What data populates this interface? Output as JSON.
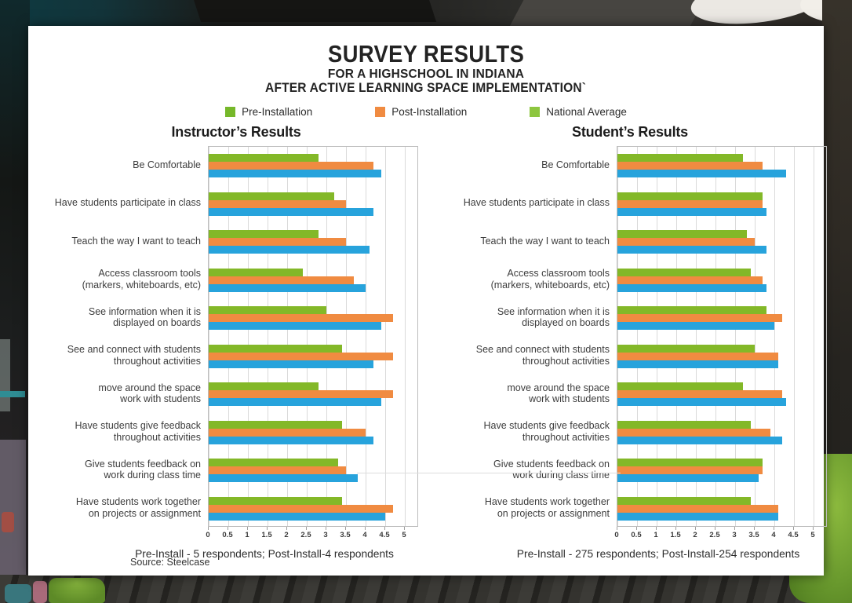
{
  "header": {
    "title": "SURVEY RESULTS",
    "subtitle1": "FOR A HIGHSCHOOL IN INDIANA",
    "subtitle2": "AFTER ACTIVE LEARNING SPACE IMPLEMENTATION`"
  },
  "legend": [
    {
      "label": "Pre-Installation",
      "color": "#76b82a"
    },
    {
      "label": "Post-Installation",
      "color": "#f08b41"
    },
    {
      "label": "National Average",
      "color": "#8dc63f"
    }
  ],
  "source": "Source: Steelcase",
  "chart_data": [
    {
      "type": "bar",
      "orientation": "horizontal",
      "title": "Instructor’s Results",
      "caption": "Pre-Install - 5 respondents; Post-Install-4 respondents",
      "xlim": [
        0,
        5
      ],
      "xticks": [
        "0",
        "0.5",
        "1",
        "1.5",
        "2",
        "2.5",
        "3",
        "3.5",
        "4",
        "4.5",
        "5"
      ],
      "grid": true,
      "categories": [
        [
          "Be Comfortable"
        ],
        [
          "Have students participate in class"
        ],
        [
          "Teach the way I want to teach"
        ],
        [
          "Access classroom tools",
          "(markers, whiteboards, etc)"
        ],
        [
          "See information when it is",
          "displayed on boards"
        ],
        [
          "See and connect with students",
          "throughout activities"
        ],
        [
          "move around the space",
          "work with students"
        ],
        [
          "Have students give feedback",
          "throughout activities"
        ],
        [
          "Give students feedback on",
          "work during class time"
        ],
        [
          "Have students work together",
          "on projects or assignment"
        ]
      ],
      "series": [
        {
          "name": "Pre-Installation",
          "color": "#83b828",
          "values": [
            2.8,
            3.2,
            2.8,
            2.4,
            3.0,
            3.4,
            2.8,
            3.4,
            3.3,
            3.4
          ]
        },
        {
          "name": "Post-Installation",
          "color": "#f08b41",
          "values": [
            4.2,
            3.5,
            3.5,
            3.7,
            4.7,
            4.7,
            4.7,
            4.0,
            3.5,
            4.7
          ]
        },
        {
          "name": "National Average",
          "color": "#27a3dc",
          "values": [
            4.4,
            4.2,
            4.1,
            4.0,
            4.4,
            4.2,
            4.4,
            4.2,
            3.8,
            4.5
          ]
        }
      ]
    },
    {
      "type": "bar",
      "orientation": "horizontal",
      "title": "Student’s Results",
      "caption": "Pre-Install - 275 respondents; Post-Install-254 respondents",
      "xlim": [
        0,
        5
      ],
      "xticks": [
        "0",
        "0.5",
        "1",
        "1.5",
        "2",
        "2.5",
        "3",
        "3.5",
        "4",
        "4.5",
        "5"
      ],
      "grid": true,
      "categories": [
        [
          "Be Comfortable"
        ],
        [
          "Have students participate in class"
        ],
        [
          "Teach the way I want to teach"
        ],
        [
          "Access classroom tools",
          "(markers, whiteboards, etc)"
        ],
        [
          "See information when it is",
          "displayed on boards"
        ],
        [
          "See and connect with students",
          "throughout activities"
        ],
        [
          "move around the space",
          "work with students"
        ],
        [
          "Have students give feedback",
          "throughout activities"
        ],
        [
          "Give students feedback on",
          "work during class time"
        ],
        [
          "Have students work together",
          "on projects or assignment"
        ]
      ],
      "series": [
        {
          "name": "Pre-Installation",
          "color": "#83b828",
          "values": [
            3.2,
            3.7,
            3.3,
            3.4,
            3.8,
            3.5,
            3.2,
            3.4,
            3.7,
            3.4
          ]
        },
        {
          "name": "Post-Installation",
          "color": "#f08b41",
          "values": [
            3.7,
            3.7,
            3.5,
            3.7,
            4.2,
            4.1,
            4.2,
            3.9,
            3.7,
            4.1
          ]
        },
        {
          "name": "National Average",
          "color": "#27a3dc",
          "values": [
            4.3,
            3.8,
            3.8,
            3.8,
            4.0,
            4.1,
            4.3,
            4.2,
            3.6,
            4.1
          ]
        }
      ]
    }
  ]
}
